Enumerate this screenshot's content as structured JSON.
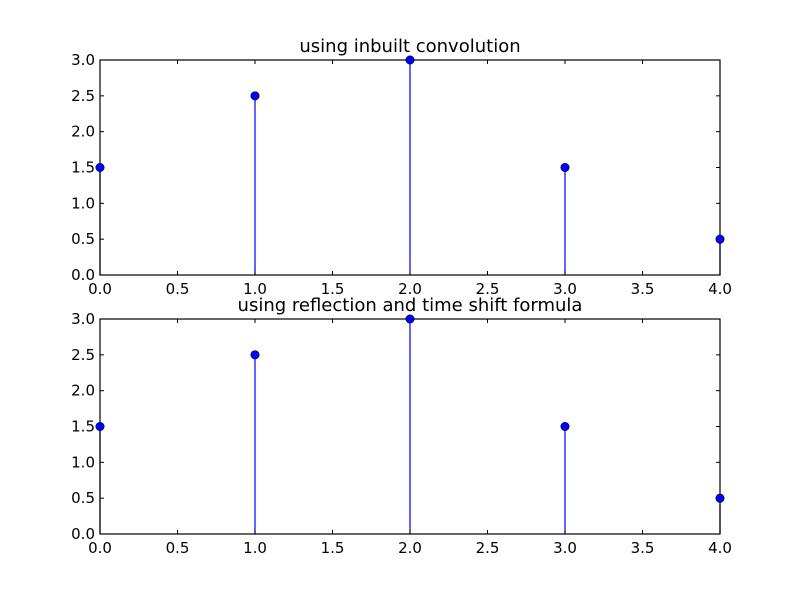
{
  "chart_data": [
    {
      "type": "stem",
      "title": "using inbuilt convolution",
      "x": [
        0,
        1,
        2,
        3,
        4
      ],
      "y": [
        1.5,
        2.5,
        3.0,
        1.5,
        0.5
      ],
      "xlim": [
        0.0,
        4.0
      ],
      "ylim": [
        0.0,
        3.0
      ],
      "xticks": [
        "0.0",
        "0.5",
        "1.0",
        "1.5",
        "2.0",
        "2.5",
        "3.0",
        "3.5",
        "4.0"
      ],
      "yticks": [
        "0.0",
        "0.5",
        "1.0",
        "1.5",
        "2.0",
        "2.5",
        "3.0"
      ],
      "color": "#0000ff",
      "grid": false
    },
    {
      "type": "stem",
      "title": "using reflection and time shift formula",
      "x": [
        0,
        1,
        2,
        3,
        4
      ],
      "y": [
        1.5,
        2.5,
        3.0,
        1.5,
        0.5
      ],
      "xlim": [
        0.0,
        4.0
      ],
      "ylim": [
        0.0,
        3.0
      ],
      "xticks": [
        "0.0",
        "0.5",
        "1.0",
        "1.5",
        "2.0",
        "2.5",
        "3.0",
        "3.5",
        "4.0"
      ],
      "yticks": [
        "0.0",
        "0.5",
        "1.0",
        "1.5",
        "2.0",
        "2.5",
        "3.0"
      ],
      "color": "#0000ff",
      "grid": false
    }
  ]
}
